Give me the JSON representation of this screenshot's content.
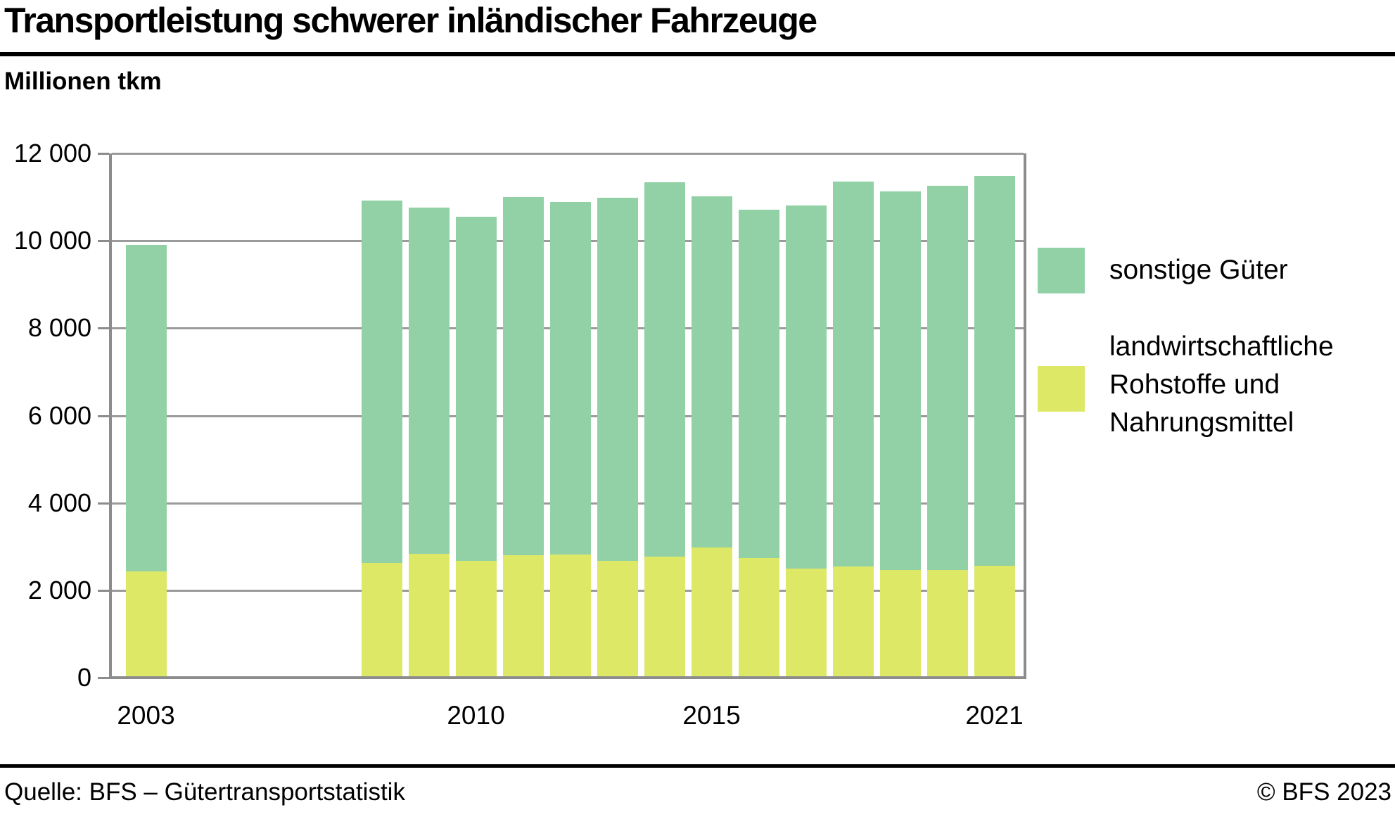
{
  "title": "Transportleistung schwerer inländischer Fahrzeuge",
  "subtitle": "Millionen tkm",
  "footer": {
    "source": "Quelle: BFS – Gütertransportstatistik",
    "copyright": "© BFS 2023"
  },
  "colors": {
    "green": "#92d1a6",
    "yellow": "#dde867",
    "grid": "#9b9b9b",
    "axis": "#8c8c8c",
    "text": "#000000"
  },
  "legend": {
    "items": [
      {
        "label": "sonstige Güter",
        "color_key": "green"
      },
      {
        "label": "landwirtschaftliche\nRohstoffe und\nNahrungsmittel",
        "color_key": "yellow"
      }
    ]
  },
  "chart_data": {
    "type": "bar",
    "stacked": true,
    "title": "Transportleistung schwerer inländischer Fahrzeuge",
    "ylabel": "Millionen tkm",
    "ylim": [
      0,
      12000
    ],
    "ytick_values": [
      0,
      2000,
      4000,
      6000,
      8000,
      10000,
      12000
    ],
    "ytick_labels": [
      "0",
      "2 000",
      "4 000",
      "6 000",
      "8 000",
      "10 000",
      "12 000"
    ],
    "xtick_years": [
      2003,
      2010,
      2015,
      2021
    ],
    "xtick_labels": [
      "2003",
      "2010",
      "2015",
      "2021"
    ],
    "grid": true,
    "legend_position": "right",
    "note": "no bars for 2004-2007",
    "categories": [
      2003,
      2008,
      2009,
      2010,
      2011,
      2012,
      2013,
      2014,
      2015,
      2016,
      2017,
      2018,
      2019,
      2020,
      2021
    ],
    "series": [
      {
        "name": "landwirtschaftliche Rohstoffe und Nahrungsmittel",
        "color_key": "yellow",
        "stack_order": 0,
        "values": [
          2400,
          2600,
          2800,
          2640,
          2770,
          2790,
          2640,
          2740,
          2950,
          2700,
          2470,
          2520,
          2430,
          2440,
          2530
        ]
      },
      {
        "name": "sonstige Güter",
        "color_key": "green",
        "stack_order": 1,
        "values": [
          7480,
          8290,
          7920,
          7880,
          8200,
          8070,
          8310,
          8560,
          8030,
          7980,
          8300,
          8800,
          8670,
          8790,
          8930
        ]
      }
    ]
  }
}
